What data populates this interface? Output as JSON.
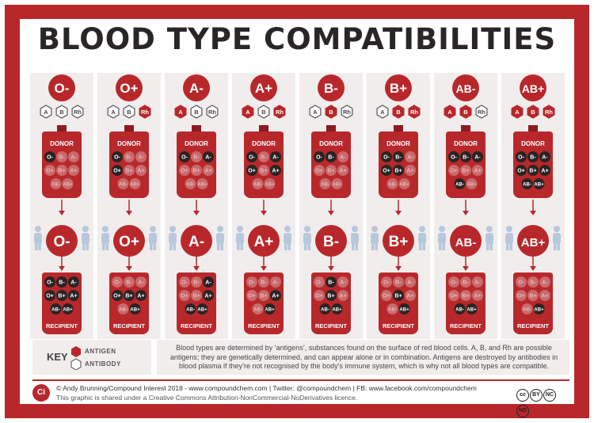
{
  "title": "BLOOD TYPE COMPATIBILITIES",
  "labels": {
    "donor": "DONOR",
    "recipient": "RECIPIENT"
  },
  "antigen_letters": {
    "A": "A",
    "B": "B",
    "Rh": "Rh"
  },
  "all_types": [
    "O-",
    "B-",
    "A-",
    "O+",
    "B+",
    "A+",
    "AB-",
    "AB+"
  ],
  "columns": [
    {
      "type": "O-",
      "antigens": {
        "A": false,
        "B": false,
        "Rh": false
      },
      "donors": [
        "O-"
      ],
      "recipients": [
        "O-",
        "B-",
        "A-",
        "O+",
        "B+",
        "A+",
        "AB-",
        "AB+"
      ]
    },
    {
      "type": "O+",
      "antigens": {
        "A": false,
        "B": false,
        "Rh": true
      },
      "donors": [
        "O-",
        "O+"
      ],
      "recipients": [
        "O+",
        "B+",
        "A+",
        "AB+"
      ]
    },
    {
      "type": "A-",
      "antigens": {
        "A": true,
        "B": false,
        "Rh": false
      },
      "donors": [
        "O-",
        "A-"
      ],
      "recipients": [
        "A-",
        "A+",
        "AB-",
        "AB+"
      ]
    },
    {
      "type": "A+",
      "antigens": {
        "A": true,
        "B": false,
        "Rh": true
      },
      "donors": [
        "O-",
        "A-",
        "O+",
        "A+"
      ],
      "recipients": [
        "A+",
        "AB+"
      ]
    },
    {
      "type": "B-",
      "antigens": {
        "A": false,
        "B": true,
        "Rh": false
      },
      "donors": [
        "O-",
        "B-"
      ],
      "recipients": [
        "B-",
        "B+",
        "AB-",
        "AB+"
      ]
    },
    {
      "type": "B+",
      "antigens": {
        "A": false,
        "B": true,
        "Rh": true
      },
      "donors": [
        "O-",
        "B-",
        "O+",
        "B+"
      ],
      "recipients": [
        "B+",
        "AB+"
      ]
    },
    {
      "type": "AB-",
      "antigens": {
        "A": true,
        "B": true,
        "Rh": false
      },
      "donors": [
        "O-",
        "B-",
        "A-",
        "AB-"
      ],
      "recipients": [
        "AB-",
        "AB+"
      ]
    },
    {
      "type": "AB+",
      "antigens": {
        "A": true,
        "B": true,
        "Rh": true
      },
      "donors": [
        "O-",
        "B-",
        "A-",
        "O+",
        "B+",
        "A+",
        "AB-",
        "AB+"
      ],
      "recipients": [
        "AB+"
      ]
    }
  ],
  "key": {
    "label": "KEY",
    "antigen": "ANTIGEN",
    "antibody": "ANTIBODY"
  },
  "note": "Blood types are determined by ‘antigens’, substances found on the surface of red blood cells. A, B, and Rh are possible antigens; they are genetically determined, and can appear alone or in combination. Antigens are destroyed by antibodies in blood plasma if they’re not recognised by the body’s immune system, which is why not all blood types are compatible.",
  "footer": {
    "logo": "Ci",
    "credit": "© Andy Brunning/Compound Interest 2018 - www.compoundchem.com | Twitter: @compoundchem | FB: www.facebook.com/compoundchem",
    "licence": "This graphic is shared under a Creative Commons Attribution-NonCommercial-NoDerivatives licence.",
    "cc": [
      "cc",
      "BY",
      "NC",
      "ND"
    ]
  },
  "colors": {
    "red": "#b8282b",
    "dark_red": "#8a1c1f",
    "panel": "#f2eded",
    "person": "#b7c8dc",
    "faded": "#c96a6c"
  }
}
